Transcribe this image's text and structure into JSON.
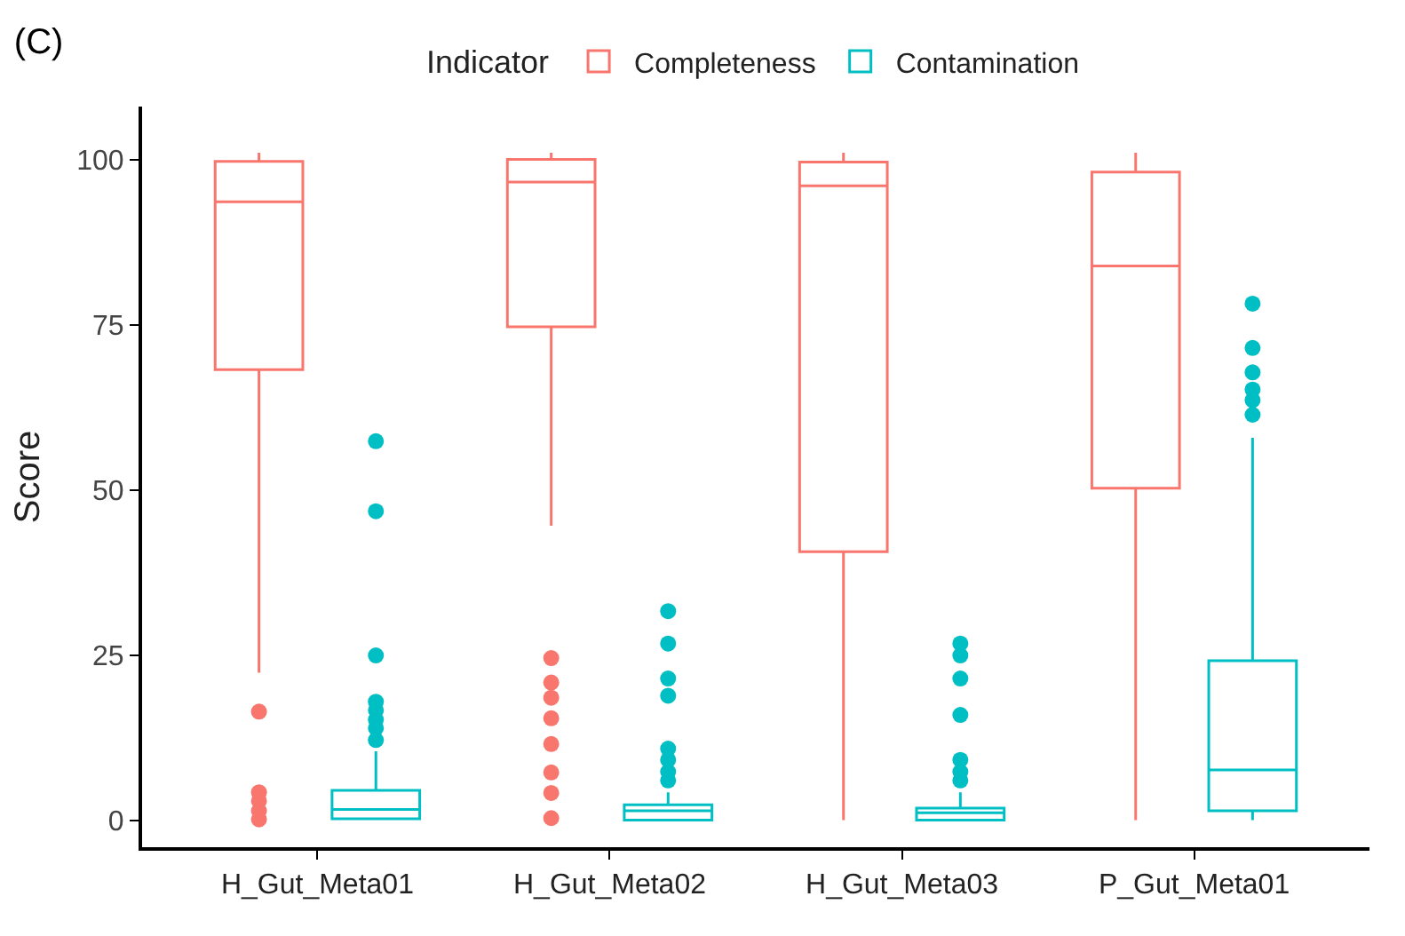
{
  "chart_data": {
    "type": "box",
    "title": "(C)",
    "ylabel": "Score",
    "legend_title": "Indicator",
    "legend": "top",
    "categories": [
      "H_Gut_Meta01",
      "H_Gut_Meta02",
      "H_Gut_Meta03",
      "P_Gut_Meta01"
    ],
    "ylim": [
      -4,
      108
    ],
    "yticks": [
      0,
      25,
      50,
      75,
      100
    ],
    "series": [
      {
        "name": "Completeness",
        "color": "#f8766d",
        "boxes": [
          {
            "low": 22.4,
            "q1": 68.2,
            "median": 93.6,
            "q3": 99.7,
            "high": 101,
            "outliers": [
              16.5,
              4.3,
              3,
              1.5,
              0.2
            ]
          },
          {
            "low": 44.6,
            "q1": 74.7,
            "median": 96.6,
            "q3": 100,
            "high": 101,
            "outliers": [
              24.6,
              20.9,
              18.6,
              15.5,
              11.6,
              7.3,
              4.2,
              0.4
            ]
          },
          {
            "low": 0.1,
            "q1": 40.7,
            "median": 96,
            "q3": 99.6,
            "high": 101
          },
          {
            "low": 0.1,
            "q1": 50.3,
            "median": 83.9,
            "q3": 98.1,
            "high": 101
          }
        ]
      },
      {
        "name": "Contamination",
        "color": "#00bfc4",
        "boxes": [
          {
            "low": 0.3,
            "q1": 0.3,
            "median": 1.7,
            "q3": 4.6,
            "high": 10.5,
            "outliers": [
              57.4,
              46.8,
              25,
              18,
              16.7,
              15.3,
              14,
              12.2
            ]
          },
          {
            "low": 0.1,
            "q1": 0.1,
            "median": 1.5,
            "q3": 2.4,
            "high": 4.3,
            "outliers": [
              31.7,
              26.8,
              21.5,
              18.9,
              10.9,
              9.2,
              7.4,
              6.1
            ]
          },
          {
            "low": 0.1,
            "q1": 0.1,
            "median": 1.2,
            "q3": 1.9,
            "high": 4.3,
            "outliers": [
              26.8,
              25,
              21.5,
              16,
              9.2,
              7.4,
              6.1
            ]
          },
          {
            "low": 0.1,
            "q1": 1.5,
            "median": 7.7,
            "q3": 24.2,
            "high": 57.9,
            "outliers": [
              78.2,
              71.5,
              67.8,
              65.2,
              63.6,
              61.4
            ]
          }
        ]
      }
    ]
  }
}
